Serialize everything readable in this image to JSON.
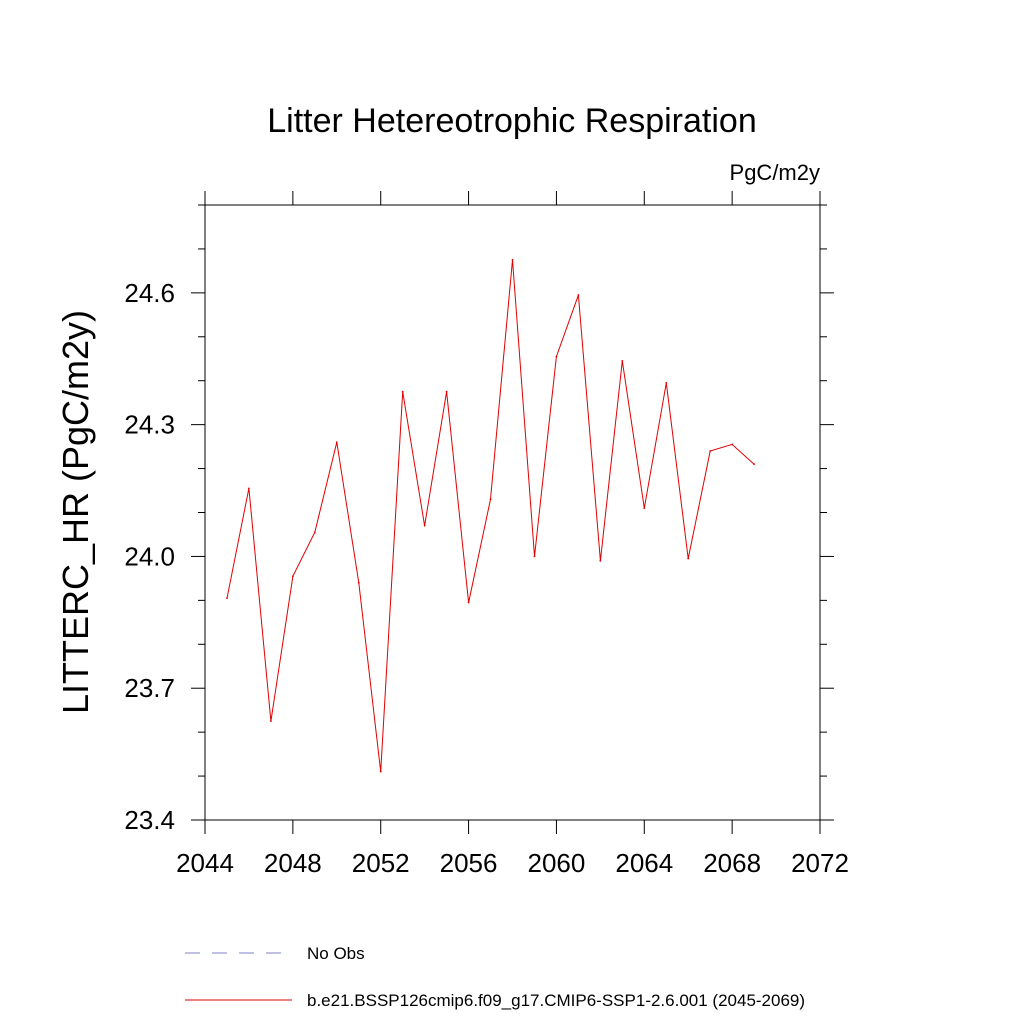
{
  "chart_data": {
    "type": "line",
    "title": "Litter Hetereotrophic Respiration",
    "units_label": "PgC/m2y",
    "xlabel": "",
    "ylabel": "LITTERC_HR  (PgC/m2y)",
    "xlim": [
      2044,
      2072
    ],
    "ylim": [
      23.4,
      24.8
    ],
    "x_ticks": [
      2044,
      2048,
      2052,
      2056,
      2060,
      2064,
      2068,
      2072
    ],
    "x_tick_labels": [
      "2044",
      "2048",
      "2052",
      "2056",
      "2060",
      "2064",
      "2068",
      "2072"
    ],
    "y_ticks": [
      23.4,
      23.7,
      24.0,
      24.3,
      24.6
    ],
    "y_tick_labels": [
      "23.4",
      "23.7",
      "24.0",
      "24.3",
      "24.6"
    ],
    "grid": false,
    "legend_placement": "bottom",
    "series": [
      {
        "name": "b.e21.BSSP126cmip6.f09_g17.CMIP6-SSP1-2.6.001 (2045-2069)",
        "color": "#e00000",
        "style": "solid",
        "x": [
          2045,
          2046,
          2047,
          2048,
          2049,
          2050,
          2051,
          2052,
          2053,
          2054,
          2055,
          2056,
          2057,
          2058,
          2059,
          2060,
          2061,
          2062,
          2063,
          2064,
          2065,
          2066,
          2067,
          2068,
          2069
        ],
        "y": [
          23.905,
          24.155,
          23.625,
          23.955,
          24.055,
          24.26,
          23.94,
          23.51,
          24.375,
          24.07,
          24.375,
          23.895,
          24.13,
          24.675,
          24.0,
          24.455,
          24.595,
          23.99,
          24.445,
          24.11,
          24.395,
          23.995,
          24.24,
          24.255,
          24.21
        ]
      }
    ],
    "legend": [
      {
        "label": "No Obs",
        "color": "#8080c8",
        "style": "dashed"
      },
      {
        "label": "b.e21.BSSP126cmip6.f09_g17.CMIP6-SSP1-2.6.001 (2045-2069)",
        "color": "#e00000",
        "style": "solid"
      }
    ]
  }
}
